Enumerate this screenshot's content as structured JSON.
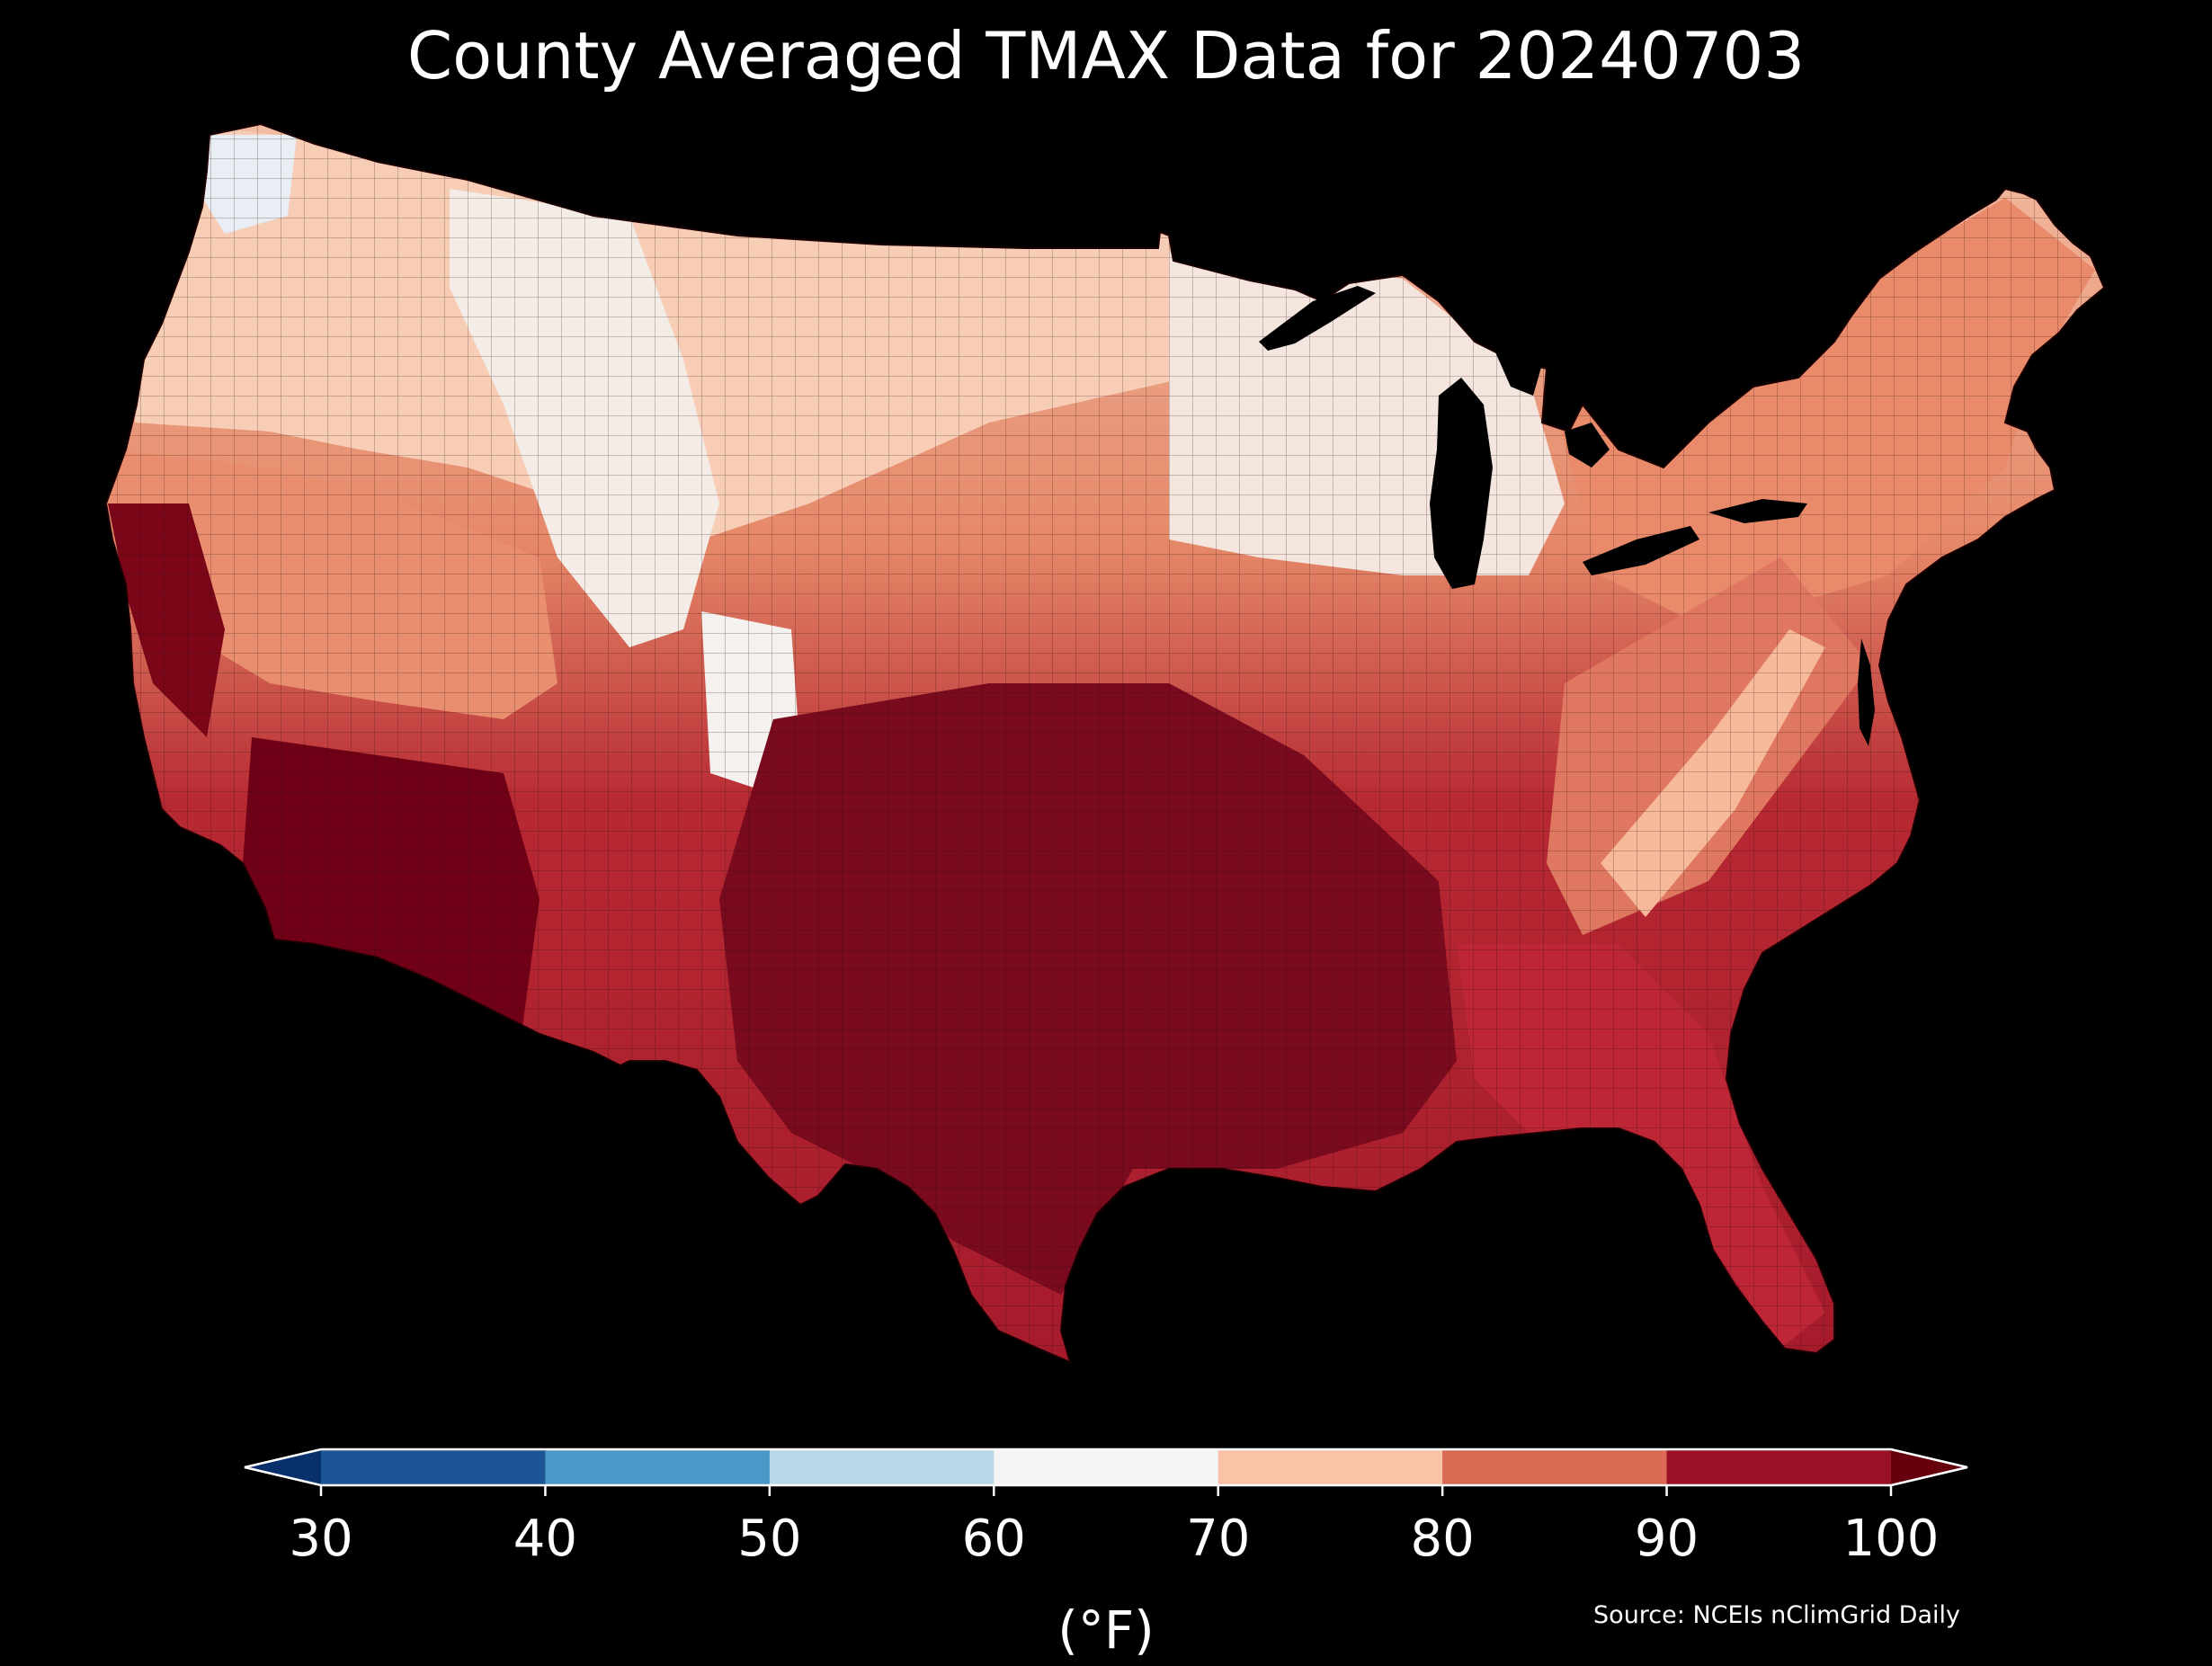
{
  "title": "County Averaged TMAX Data for 20240703",
  "map": {
    "region": "Contiguous United States",
    "fill_regions": [
      {
        "area": "Pacific Northwest coast",
        "value_band": "60-70"
      },
      {
        "area": "Northern Rockies / Montana",
        "value_band": "60-70"
      },
      {
        "area": "Upper Midwest / Michigan",
        "value_band": "60-70"
      },
      {
        "area": "Northern Plains",
        "value_band": "70-80"
      },
      {
        "area": "Great Basin / Nevada",
        "value_band": "80-90"
      },
      {
        "area": "Northeast / New England",
        "value_band": "80-90"
      },
      {
        "area": "Appalachian ridge",
        "value_band": "70-80"
      },
      {
        "area": "Southeast / Florida",
        "value_band": "90-100"
      },
      {
        "area": "Desert Southwest / Arizona",
        "value_band": ">100"
      },
      {
        "area": "Texas / Oklahoma / Lower Mississippi",
        "value_band": ">100"
      },
      {
        "area": "California Central Valley",
        "value_band": ">100"
      }
    ]
  },
  "colorbar": {
    "ticks": [
      "30",
      "40",
      "50",
      "60",
      "70",
      "80",
      "90",
      "100"
    ],
    "unit_label": "(°F)",
    "under_color": "#08306b",
    "over_color": "#67000d",
    "bands": [
      {
        "from": "30",
        "to": "40",
        "color": "#1b5596"
      },
      {
        "from": "40",
        "to": "50",
        "color": "#4a98c8"
      },
      {
        "from": "50",
        "to": "60",
        "color": "#b8d8ea"
      },
      {
        "from": "60",
        "to": "70",
        "color": "#f5f5f5"
      },
      {
        "from": "70",
        "to": "80",
        "color": "#f8c3a7"
      },
      {
        "from": "80",
        "to": "90",
        "color": "#db6a55"
      },
      {
        "from": "90",
        "to": "100",
        "color": "#9a1025"
      }
    ]
  },
  "source": "Source: NCEIs nClimGrid Daily"
}
